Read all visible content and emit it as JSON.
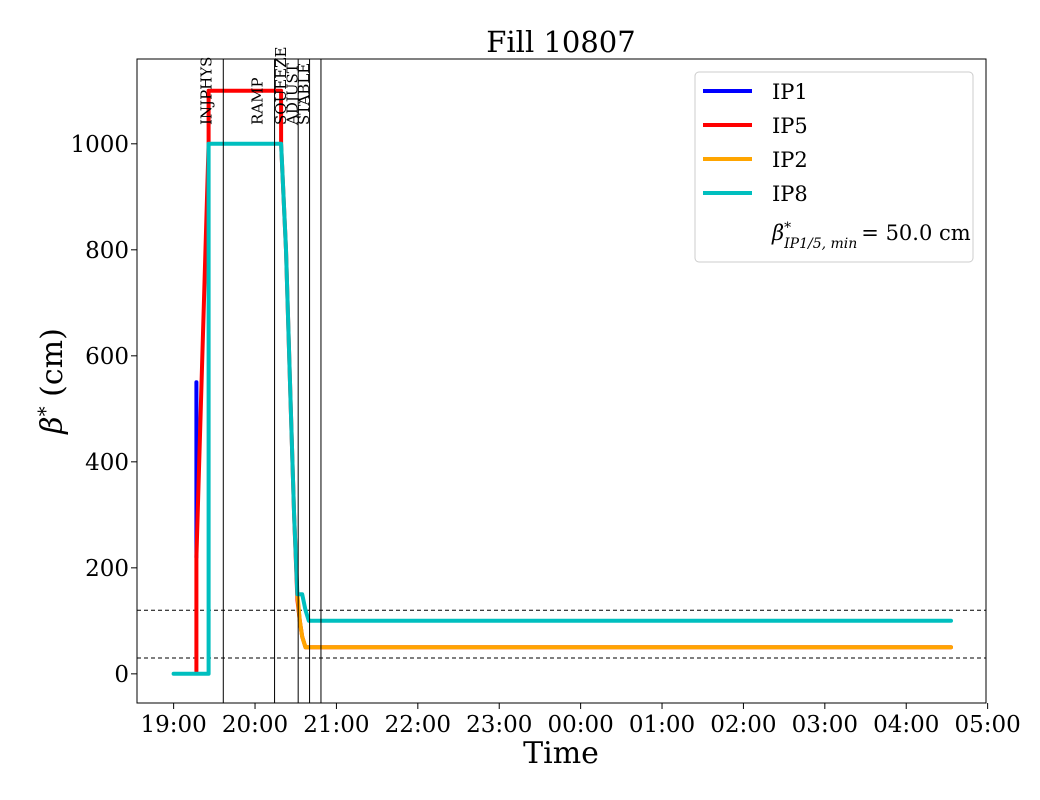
{
  "chart_data": {
    "type": "line",
    "title": "Fill 10807",
    "xlabel": "Time",
    "ylabel": "β* (cm)",
    "x_unit": "hours from 19:00",
    "xlim": [
      -0.45,
      9.98
    ],
    "ylim": [
      -55,
      1160
    ],
    "x_ticks": [
      0,
      1,
      2,
      3,
      4,
      5,
      6,
      7,
      8,
      9,
      10
    ],
    "x_tick_labels": [
      "19:00",
      "20:00",
      "21:00",
      "22:00",
      "23:00",
      "00:00",
      "01:00",
      "02:00",
      "03:00",
      "04:00",
      "05:00"
    ],
    "y_ticks": [
      0,
      200,
      400,
      600,
      800,
      1000
    ],
    "y_tick_labels": [
      "0",
      "200",
      "400",
      "600",
      "800",
      "1000"
    ],
    "grid": false,
    "legend_position": "top-right",
    "phases": [
      {
        "label": "INJPHYS",
        "x": 0.61
      },
      {
        "label": "RAMP",
        "x": 1.24
      },
      {
        "label": "SQUEEZE",
        "x": 1.53
      },
      {
        "label": "ADJUST",
        "x": 1.67
      },
      {
        "label": "STABLE",
        "x": 1.81
      }
    ],
    "reference_lines": [
      120,
      30
    ],
    "series": [
      {
        "name": "IP1",
        "color": "#0000ff",
        "x": [
          0.28,
          0.28
        ],
        "y": [
          220,
          550
        ]
      },
      {
        "name": "IP5",
        "color": "#ff0000",
        "x": [
          0.28,
          0.28,
          0.43,
          0.43,
          1.32,
          1.32,
          1.38,
          1.44,
          1.48,
          1.52,
          1.55,
          1.58,
          1.62,
          9.55
        ],
        "y": [
          5,
          220,
          1000,
          1100,
          1100,
          1000,
          800,
          500,
          300,
          140,
          100,
          70,
          50,
          50
        ]
      },
      {
        "name": "IP2",
        "color": "#ffa500",
        "x": [
          1.52,
          1.55,
          1.58,
          1.62,
          9.55
        ],
        "y": [
          150,
          100,
          70,
          50,
          50
        ]
      },
      {
        "name": "IP8",
        "color": "#00bfbf",
        "x": [
          0.0,
          0.43,
          0.43,
          1.32,
          1.38,
          1.44,
          1.48,
          1.52,
          1.58,
          1.62,
          1.66,
          9.55
        ],
        "y": [
          0,
          0,
          1000,
          1000,
          800,
          500,
          300,
          150,
          150,
          120,
          100,
          100
        ]
      }
    ],
    "legend_extra": "β*_{IP1/5, min} = 50.0 cm"
  },
  "legend": {
    "entries": [
      "IP1",
      "IP5",
      "IP2",
      "IP8"
    ],
    "beta_symbol": "β",
    "beta_sub": "IP1/5, min",
    "beta_value": "= 50.0 cm"
  }
}
